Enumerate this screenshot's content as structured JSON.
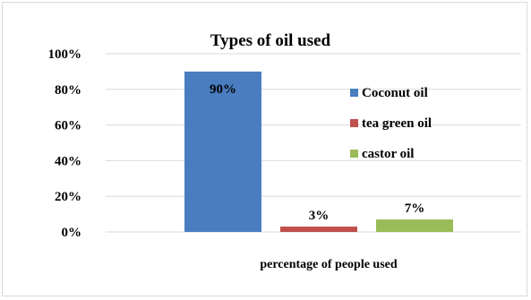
{
  "chart_data": {
    "type": "bar",
    "title": "Types of oil used",
    "xlabel": "percentage of people used",
    "ylabel": "",
    "ylim": [
      0,
      100
    ],
    "yticks": [
      "0%",
      "20%",
      "40%",
      "60%",
      "80%",
      "100%"
    ],
    "grid": true,
    "legend_position": "right",
    "series": [
      {
        "name": "Coconut oil",
        "values": [
          90
        ],
        "label": "90%",
        "color": "#4a7dc0"
      },
      {
        "name": "tea green oil",
        "values": [
          3
        ],
        "label": "3%",
        "color": "#c0504d"
      },
      {
        "name": "castor oil",
        "values": [
          7
        ],
        "label": "7%",
        "color": "#9bbb59"
      }
    ]
  }
}
